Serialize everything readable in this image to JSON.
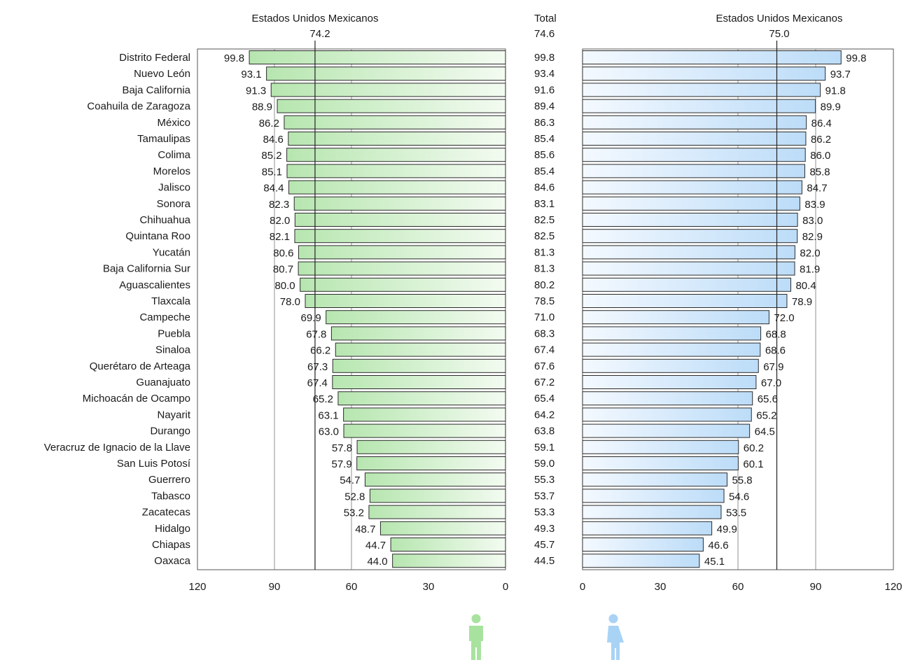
{
  "header": {
    "left_title": "Estados Unidos Mexicanos",
    "left_value": "74.2",
    "center_title": "Total",
    "center_value": "74.6",
    "right_title": "Estados Unidos Mexicanos",
    "right_value": "75.0"
  },
  "colors": {
    "men_bar_dark": "#b7e6b0",
    "men_bar_light": "#f3fbf1",
    "women_bar_dark": "#bcdcf8",
    "women_bar_light": "#f4f9ff",
    "men_icon": "#a8e29f",
    "women_icon": "#a9d3f5"
  },
  "icons": {
    "men": "man-icon",
    "women": "woman-icon"
  },
  "chart_data": {
    "type": "bar",
    "orientation": "horizontal",
    "categories": [
      "Distrito Federal",
      "Nuevo León",
      "Baja California",
      "Coahuila de Zaragoza",
      "México",
      "Tamaulipas",
      "Colima",
      "Morelos",
      "Jalisco",
      "Sonora",
      "Chihuahua",
      "Quintana Roo",
      "Yucatán",
      "Baja California Sur",
      "Aguascalientes",
      "Tlaxcala",
      "Campeche",
      "Puebla",
      "Sinaloa",
      "Querétaro de Arteaga",
      "Guanajuato",
      "Michoacán de Ocampo",
      "Nayarit",
      "Durango",
      "Veracruz de Ignacio de la Llave",
      "San Luis Potosí",
      "Guerrero",
      "Tabasco",
      "Zacatecas",
      "Hidalgo",
      "Chiapas",
      "Oaxaca"
    ],
    "series": [
      {
        "key": "men",
        "values": [
          99.8,
          93.1,
          91.3,
          88.9,
          86.2,
          84.6,
          85.2,
          85.1,
          84.4,
          82.3,
          82.0,
          82.1,
          80.6,
          80.7,
          80.0,
          78.0,
          69.9,
          67.8,
          66.2,
          67.3,
          67.4,
          65.2,
          63.1,
          63.0,
          57.8,
          57.9,
          54.7,
          52.8,
          53.2,
          48.7,
          44.7,
          44.0
        ],
        "labels": [
          "99.8",
          "93.1",
          "91.3",
          "88.9",
          "86.2",
          "84.6",
          "85.2",
          "85.1",
          "84.4",
          "82.3",
          "82.0",
          "82.1",
          "80.6",
          "80.7",
          "80.0",
          "78.0",
          "69.9",
          "67.8",
          "66.2",
          "67.3",
          "67.4",
          "65.2",
          "63.1",
          "63.0",
          "57.8",
          "57.9",
          "54.7",
          "52.8",
          "53.2",
          "48.7",
          "44.7",
          "44.0"
        ]
      },
      {
        "key": "total",
        "values": [
          99.8,
          93.4,
          91.6,
          89.4,
          86.3,
          85.4,
          85.6,
          85.4,
          84.6,
          83.1,
          82.5,
          82.5,
          81.3,
          81.3,
          80.2,
          78.5,
          71.0,
          68.3,
          67.4,
          67.6,
          67.2,
          65.4,
          64.2,
          63.8,
          59.1,
          59.0,
          55.3,
          53.7,
          53.3,
          49.3,
          45.7,
          44.5
        ],
        "labels": [
          "99.8",
          "93.4",
          "91.6",
          "89.4",
          "86.3",
          "85.4",
          "85.6",
          "85.4",
          "84.6",
          "83.1",
          "82.5",
          "82.5",
          "81.3",
          "81.3",
          "80.2",
          "78.5",
          "71.0",
          "68.3",
          "67.4",
          "67.6",
          "67.2",
          "65.4",
          "64.2",
          "63.8",
          "59.1",
          "59.0",
          "55.3",
          "53.7",
          "53.3",
          "49.3",
          "45.7",
          "44.5"
        ]
      },
      {
        "key": "women",
        "values": [
          99.8,
          93.7,
          91.8,
          89.9,
          86.4,
          86.2,
          86.0,
          85.8,
          84.7,
          83.9,
          83.0,
          82.9,
          82.0,
          81.9,
          80.4,
          78.9,
          72.0,
          68.8,
          68.6,
          67.9,
          67.0,
          65.6,
          65.2,
          64.5,
          60.2,
          60.1,
          55.8,
          54.6,
          53.5,
          49.9,
          46.6,
          45.1
        ],
        "labels": [
          "99.8",
          "93.7",
          "91.8",
          "89.9",
          "86.4",
          "86.2",
          "86.0",
          "85.8",
          "84.7",
          "83.9",
          "83.0",
          "82.9",
          "82.0",
          "81.9",
          "80.4",
          "78.9",
          "72.0",
          "68.8",
          "68.6",
          "67.9",
          "67.0",
          "65.6",
          "65.2",
          "64.5",
          "60.2",
          "60.1",
          "55.8",
          "54.6",
          "53.5",
          "49.9",
          "46.6",
          "45.1"
        ]
      }
    ],
    "reference": {
      "men": 74.2,
      "total": 74.6,
      "women": 75.0
    },
    "xlim": [
      0,
      120
    ],
    "left_ticks": [
      "120",
      "90",
      "60",
      "30",
      "0"
    ],
    "right_ticks": [
      "0",
      "30",
      "60",
      "90",
      "120"
    ],
    "left_tick_values": [
      120,
      90,
      60,
      30,
      0
    ],
    "right_tick_values": [
      0,
      30,
      60,
      90,
      120
    ]
  }
}
